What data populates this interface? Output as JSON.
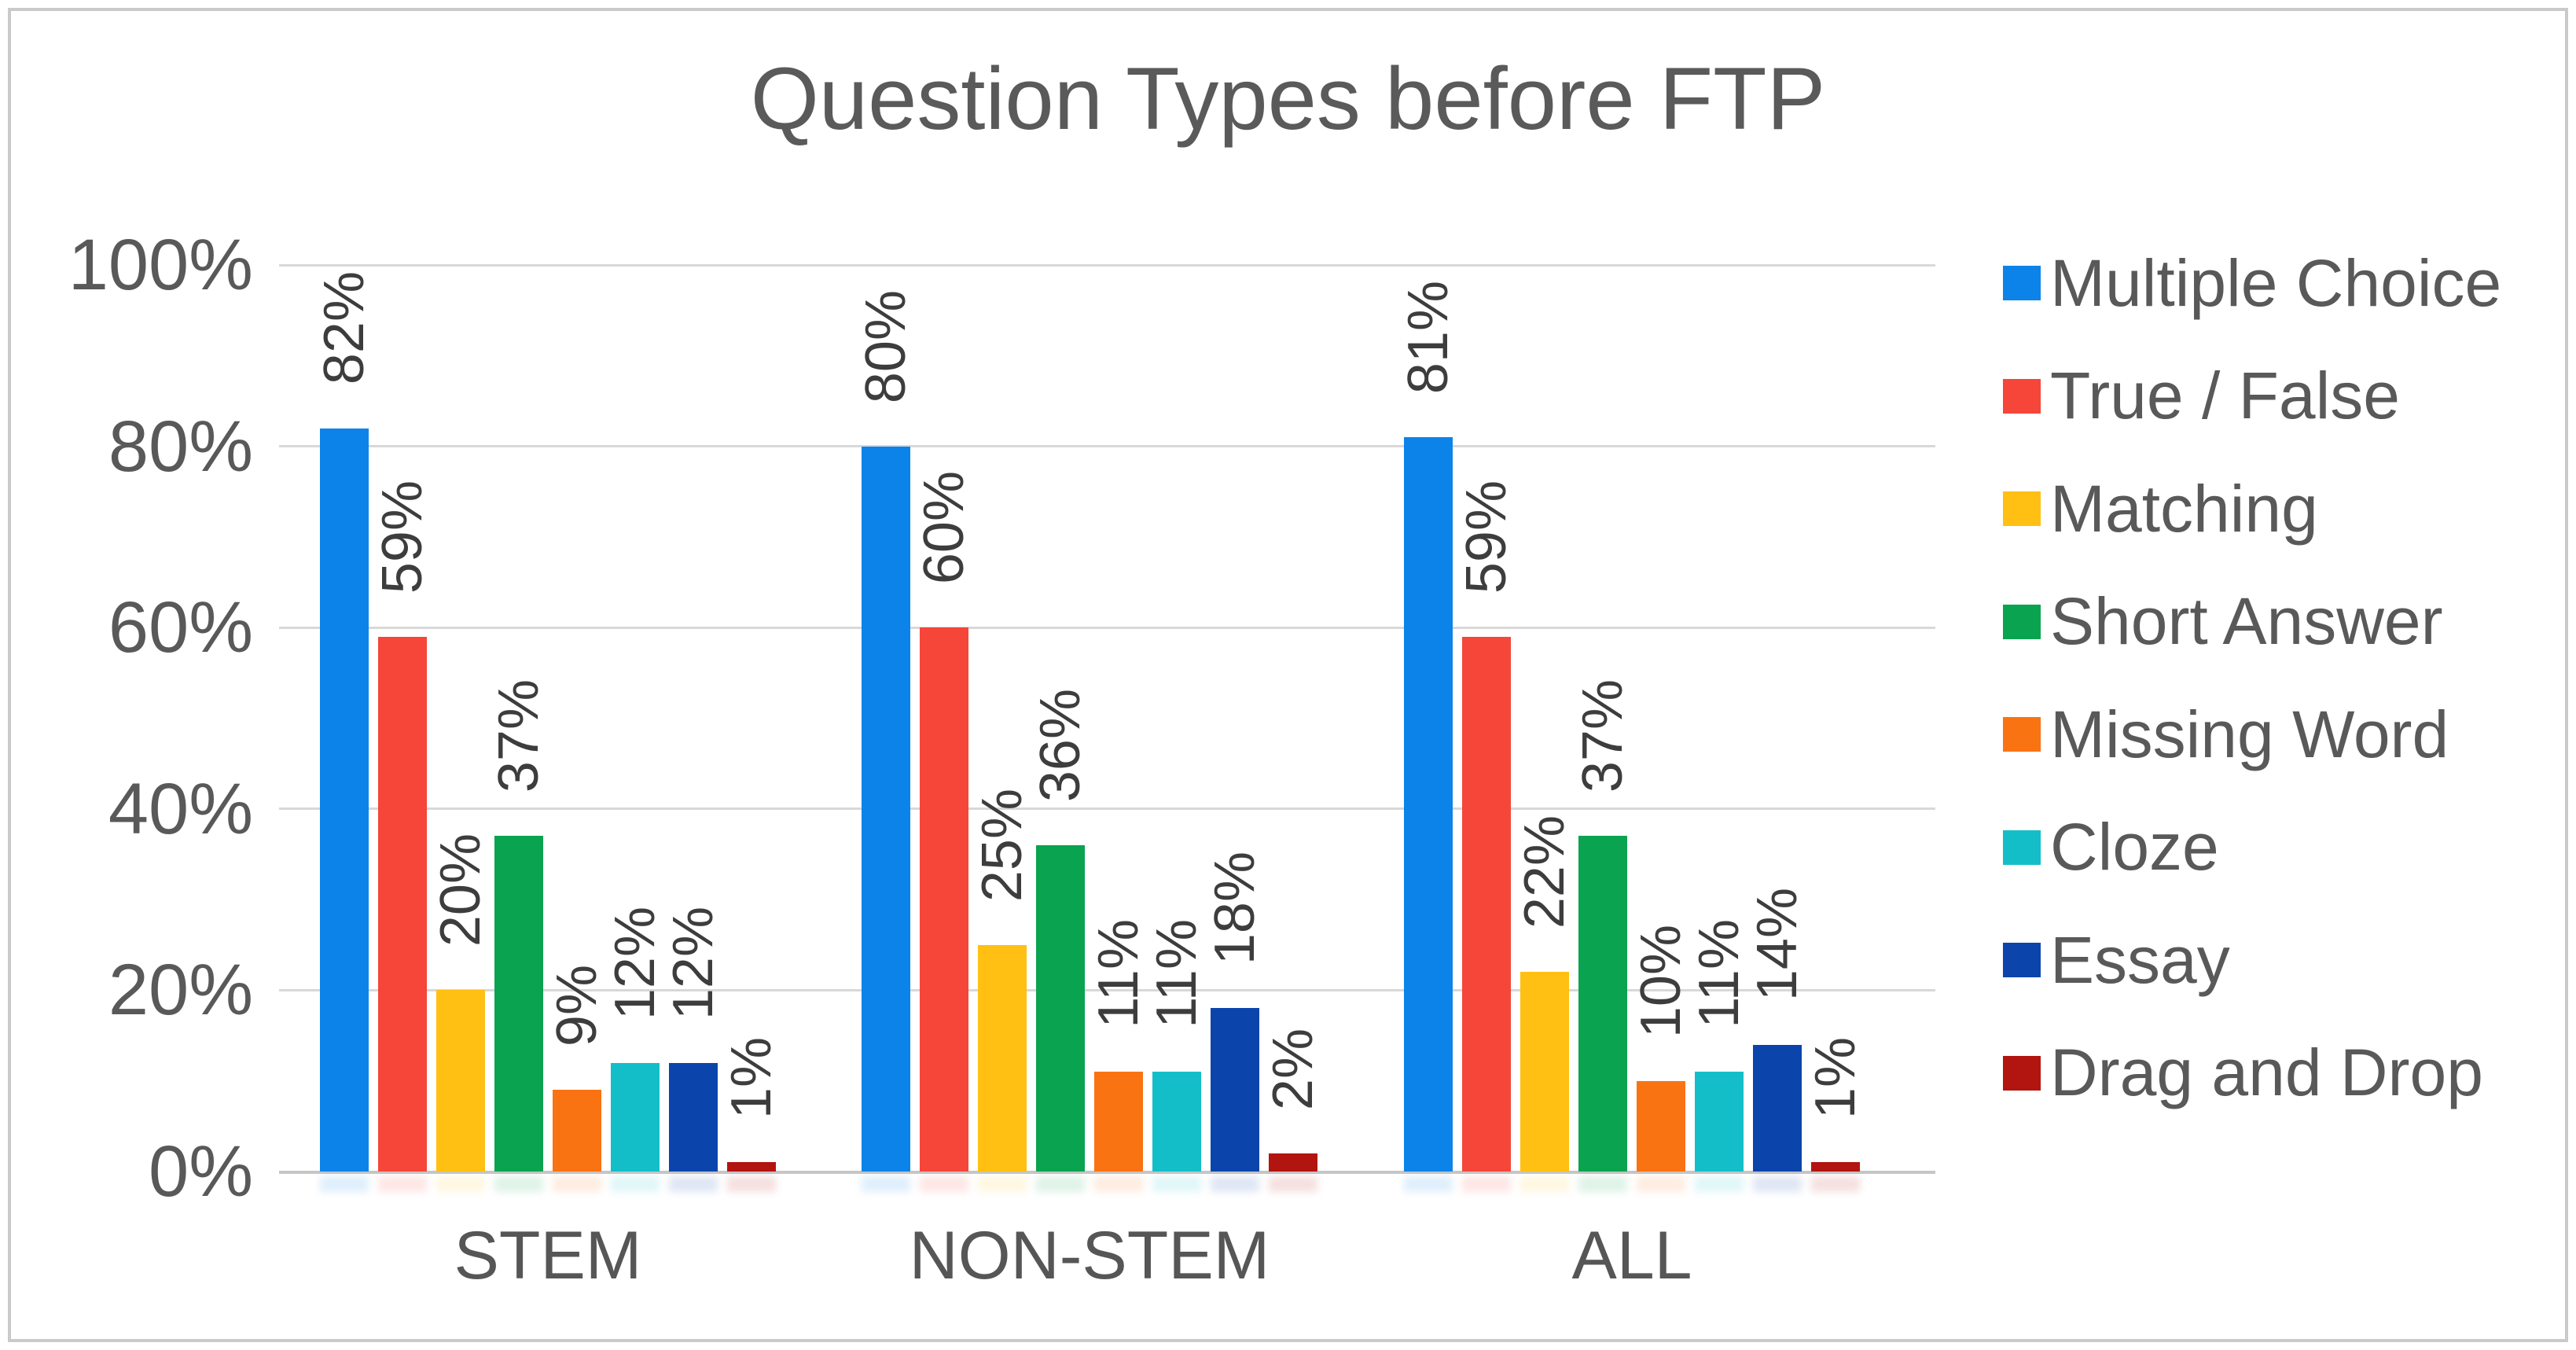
{
  "chart_data": {
    "type": "bar",
    "title": "Question Types before FTP",
    "categories": [
      "STEM",
      "NON-STEM",
      "ALL"
    ],
    "series": [
      {
        "name": "Multiple Choice",
        "color": "#0c83e8",
        "values": [
          82,
          80,
          81
        ]
      },
      {
        "name": "True / False",
        "color": "#f54639",
        "values": [
          59,
          60,
          59
        ]
      },
      {
        "name": "Matching",
        "color": "#ffc013",
        "values": [
          20,
          25,
          22
        ]
      },
      {
        "name": "Short Answer",
        "color": "#0aa350",
        "values": [
          37,
          36,
          37
        ]
      },
      {
        "name": "Missing Word",
        "color": "#fa7312",
        "values": [
          9,
          11,
          10
        ]
      },
      {
        "name": "Cloze",
        "color": "#14bec9",
        "values": [
          12,
          11,
          11
        ]
      },
      {
        "name": "Essay",
        "color": "#0b45ac",
        "values": [
          12,
          18,
          14
        ]
      },
      {
        "name": "Drag and Drop",
        "color": "#b2140f",
        "values": [
          1,
          2,
          1
        ]
      }
    ],
    "y_ticks": [
      {
        "value": 100,
        "label": "100%"
      },
      {
        "value": 80,
        "label": "80%"
      },
      {
        "value": 60,
        "label": "60%"
      },
      {
        "value": 40,
        "label": "40%"
      },
      {
        "value": 20,
        "label": "20%"
      },
      {
        "value": 0,
        "label": "0%"
      }
    ],
    "ylim": [
      0,
      100
    ],
    "grid": true,
    "legend_position": "right",
    "value_label_suffix": "%"
  }
}
